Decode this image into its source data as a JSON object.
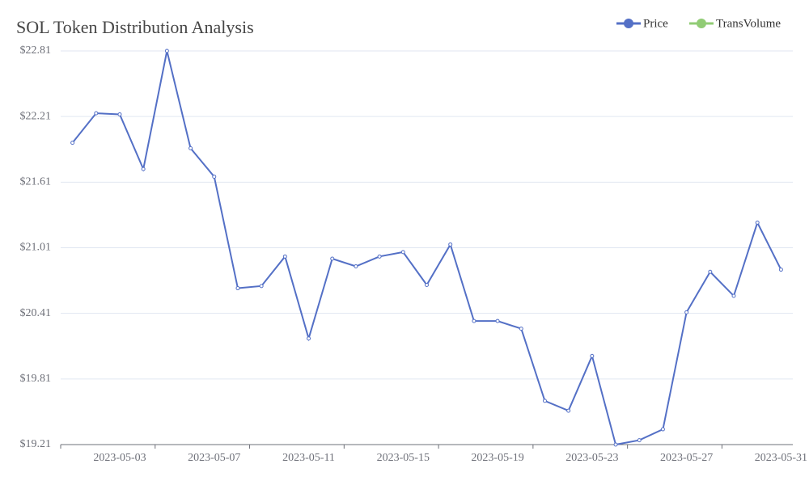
{
  "chart_data": {
    "type": "line",
    "title": "SOL Token Distribution Analysis",
    "categories": [
      null,
      null,
      "2023-05-03",
      null,
      null,
      null,
      "2023-05-07",
      null,
      null,
      null,
      "2023-05-11",
      null,
      null,
      null,
      "2023-05-15",
      null,
      null,
      null,
      "2023-05-19",
      null,
      null,
      null,
      "2023-05-23",
      null,
      null,
      null,
      "2023-05-27",
      null,
      null,
      null,
      "2023-05-31"
    ],
    "series": [
      {
        "name": "Price",
        "color": "#5470c6",
        "values": [
          21.97,
          22.24,
          22.23,
          21.73,
          22.81,
          21.92,
          21.66,
          20.64,
          20.66,
          20.93,
          20.18,
          20.91,
          20.84,
          20.93,
          20.97,
          20.67,
          21.04,
          20.34,
          20.34,
          20.27,
          19.61,
          19.52,
          20.02,
          19.21,
          19.25,
          19.35,
          20.42,
          20.79,
          20.57,
          21.24,
          20.81
        ]
      },
      {
        "name": "TransVolume",
        "color": "#91cc75",
        "values": [
          null,
          null,
          null,
          null,
          null,
          null,
          null,
          null,
          null,
          null,
          null,
          null,
          null,
          null,
          null,
          null,
          null,
          null,
          null,
          null,
          null,
          null,
          null,
          null,
          null,
          null,
          null,
          null,
          null,
          null,
          null
        ]
      }
    ],
    "ylim": [
      19.21,
      22.81
    ],
    "yticks": [
      {
        "value": 19.21,
        "label": "$19.21"
      },
      {
        "value": 19.81,
        "label": "$19.81"
      },
      {
        "value": 20.41,
        "label": "$20.41"
      },
      {
        "value": 21.01,
        "label": "$21.01"
      },
      {
        "value": 21.61,
        "label": "$21.61"
      },
      {
        "value": 22.21,
        "label": "$22.21"
      },
      {
        "value": 22.81,
        "label": "$22.81"
      }
    ],
    "grid": true,
    "legend": "top-right"
  }
}
